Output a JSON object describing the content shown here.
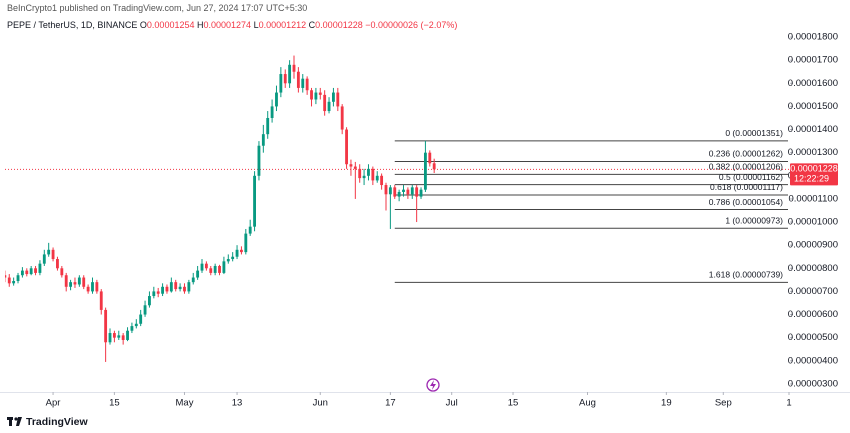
{
  "header": {
    "published": "BeInCrypto1 published on TradingView.com, Jun 27, 2024 17:07 UTC+5:30",
    "symbol": "PEPE / TetherUS, 1D, BINANCE",
    "ohlc": [
      {
        "key": "O",
        "text": "0.00001254"
      },
      {
        "key": "H",
        "text": "0.00001274"
      },
      {
        "key": "L",
        "text": "0.00001212"
      },
      {
        "key": "C",
        "text": "0.00001228"
      }
    ],
    "change": "−0.00000026 (−2.07%)"
  },
  "footer": {
    "logo": "TradingView"
  },
  "chart_data": {
    "type": "candlestick",
    "up_color": "#089981",
    "down_color": "#f23645",
    "grid": false,
    "x": [
      "2024-03-21",
      "2024-03-22",
      "2024-03-23",
      "2024-03-24",
      "2024-03-25",
      "2024-03-26",
      "2024-03-27",
      "2024-03-28",
      "2024-03-29",
      "2024-03-30",
      "2024-03-31",
      "2024-04-01",
      "2024-04-02",
      "2024-04-03",
      "2024-04-04",
      "2024-04-05",
      "2024-04-06",
      "2024-04-07",
      "2024-04-08",
      "2024-04-09",
      "2024-04-10",
      "2024-04-11",
      "2024-04-12",
      "2024-04-13",
      "2024-04-14",
      "2024-04-15",
      "2024-04-16",
      "2024-04-17",
      "2024-04-18",
      "2024-04-19",
      "2024-04-20",
      "2024-04-21",
      "2024-04-22",
      "2024-04-23",
      "2024-04-24",
      "2024-04-25",
      "2024-04-26",
      "2024-04-27",
      "2024-04-28",
      "2024-04-29",
      "2024-04-30",
      "2024-05-01",
      "2024-05-02",
      "2024-05-03",
      "2024-05-04",
      "2024-05-05",
      "2024-05-06",
      "2024-05-07",
      "2024-05-08",
      "2024-05-09",
      "2024-05-10",
      "2024-05-11",
      "2024-05-12",
      "2024-05-13",
      "2024-05-14",
      "2024-05-15",
      "2024-05-16",
      "2024-05-17",
      "2024-05-18",
      "2024-05-19",
      "2024-05-20",
      "2024-05-21",
      "2024-05-22",
      "2024-05-23",
      "2024-05-24",
      "2024-05-25",
      "2024-05-26",
      "2024-05-27",
      "2024-05-28",
      "2024-05-29",
      "2024-05-30",
      "2024-05-31",
      "2024-06-01",
      "2024-06-02",
      "2024-06-03",
      "2024-06-04",
      "2024-06-05",
      "2024-06-06",
      "2024-06-07",
      "2024-06-08",
      "2024-06-09",
      "2024-06-10",
      "2024-06-11",
      "2024-06-12",
      "2024-06-13",
      "2024-06-14",
      "2024-06-15",
      "2024-06-16",
      "2024-06-17",
      "2024-06-18",
      "2024-06-19",
      "2024-06-20",
      "2024-06-21",
      "2024-06-22",
      "2024-06-23",
      "2024-06-24",
      "2024-06-25",
      "2024-06-26",
      "2024-06-27"
    ],
    "open": [
      7.7e-06,
      7.6e-06,
      7.35e-06,
      7.45e-06,
      7.7e-06,
      7.9e-06,
      7.75e-06,
      8e-06,
      7.8e-06,
      8.2e-06,
      8.6e-06,
      8.8e-06,
      8.4e-06,
      8e-06,
      7.7e-06,
      7.2e-06,
      7.4e-06,
      7.3e-06,
      7.6e-06,
      7.2e-06,
      7e-06,
      7.4e-06,
      7e-06,
      6.2e-06,
      4.8e-06,
      5.2e-06,
      5e-06,
      5.1e-06,
      4.9e-06,
      5.3e-06,
      5.5e-06,
      5.6e-06,
      6e-06,
      6.4e-06,
      6.8e-06,
      7e-06,
      6.9e-06,
      7.2e-06,
      7e-06,
      7.4e-06,
      7.1e-06,
      7.2e-06,
      7e-06,
      7.4e-06,
      7.6e-06,
      7.9e-06,
      8.2e-06,
      8e-06,
      7.8e-06,
      8.1e-06,
      7.8e-06,
      8.3e-06,
      8.4e-06,
      8.5e-06,
      8.8e-06,
      8.7e-06,
      9.5e-06,
      9.8e-06,
      1.2e-05,
      1.33e-05,
      1.38e-05,
      1.45e-05,
      1.5e-05,
      1.56e-05,
      1.64e-05,
      1.6e-05,
      1.68e-05,
      1.65e-05,
      1.58e-05,
      1.62e-05,
      1.57e-05,
      1.53e-05,
      1.56e-05,
      1.55e-05,
      1.48e-05,
      1.52e-05,
      1.56e-05,
      1.5e-05,
      1.4e-05,
      1.25e-05,
      1.24e-05,
      1.23e-05,
      1.19e-05,
      1.2e-05,
      1.23e-05,
      1.18e-05,
      1.2e-05,
      1.16e-05,
      1.12e-05,
      1.15e-05,
      1.11e-05,
      1.13e-05,
      1.14e-05,
      1.12e-05,
      1.15e-05,
      1.11e-05,
      1.14e-05,
      1.3e-05,
      1.254e-05
    ],
    "high": [
      7.9e-06,
      7.75e-06,
      7.6e-06,
      7.8e-06,
      8.05e-06,
      8e-06,
      8.1e-06,
      8.1e-06,
      8.35e-06,
      8.8e-06,
      9.1e-06,
      8.9e-06,
      8.5e-06,
      8.1e-06,
      7.8e-06,
      7.5e-06,
      7.6e-06,
      7.7e-06,
      7.7e-06,
      7.3e-06,
      7.6e-06,
      7.5e-06,
      7.1e-06,
      6.3e-06,
      5.4e-06,
      5.3e-06,
      5.3e-06,
      5.2e-06,
      5.45e-06,
      5.65e-06,
      5.8e-06,
      6.2e-06,
      6.6e-06,
      7e-06,
      7.2e-06,
      7.15e-06,
      7.35e-06,
      7.3e-06,
      7.6e-06,
      7.5e-06,
      7.35e-06,
      7.35e-06,
      7.5e-06,
      7.8e-06,
      8.1e-06,
      8.4e-06,
      8.3e-06,
      8.1e-06,
      8.2e-06,
      8.15e-06,
      8.5e-06,
      8.6e-06,
      8.7e-06,
      9e-06,
      8.95e-06,
      9.7e-06,
      1.01e-05,
      1.22e-05,
      1.35e-05,
      1.42e-05,
      1.48e-05,
      1.53e-05,
      1.59e-05,
      1.67e-05,
      1.66e-05,
      1.7e-05,
      1.72e-05,
      1.67e-05,
      1.64e-05,
      1.63e-05,
      1.58e-05,
      1.58e-05,
      1.58e-05,
      1.57e-05,
      1.54e-05,
      1.58e-05,
      1.58e-05,
      1.51e-05,
      1.41e-05,
      1.27e-05,
      1.26e-05,
      1.25e-05,
      1.23e-05,
      1.25e-05,
      1.24e-05,
      1.22e-05,
      1.21e-05,
      1.17e-05,
      1.16e-05,
      1.16e-05,
      1.14e-05,
      1.16e-05,
      1.15e-05,
      1.16e-05,
      1.16e-05,
      1.15e-05,
      1.351e-05,
      1.31e-05,
      1.274e-05
    ],
    "low": [
      7.4e-06,
      7.2e-06,
      7.25e-06,
      7.35e-06,
      7.6e-06,
      7.65e-06,
      7.7e-06,
      7.7e-06,
      7.7e-06,
      8.1e-06,
      8.5e-06,
      8.3e-06,
      7.9e-06,
      7.6e-06,
      7e-06,
      7.05e-06,
      7.15e-06,
      7.2e-06,
      7.1e-06,
      6.9e-06,
      6.9e-06,
      6.9e-06,
      6e-06,
      3.95e-06,
      4.7e-06,
      4.8e-06,
      4.9e-06,
      4.7e-06,
      4.85e-06,
      5.2e-06,
      5.4e-06,
      5.5e-06,
      5.9e-06,
      6.3e-06,
      6.7e-06,
      6.75e-06,
      6.8e-06,
      6.9e-06,
      6.95e-06,
      7e-06,
      7e-06,
      6.9e-06,
      6.9e-06,
      7.3e-06,
      7.5e-06,
      7.8e-06,
      7.9e-06,
      7.7e-06,
      7.7e-06,
      7.7e-06,
      7.75e-06,
      8.2e-06,
      8.3e-06,
      8.4e-06,
      8.6e-06,
      8.6e-06,
      9.4e-06,
      9.6e-06,
      1.18e-05,
      1.3e-05,
      1.36e-05,
      1.43e-05,
      1.48e-05,
      1.54e-05,
      1.58e-05,
      1.58e-05,
      1.62e-05,
      1.56e-05,
      1.56e-05,
      1.55e-05,
      1.5e-05,
      1.51e-05,
      1.53e-05,
      1.46e-05,
      1.47e-05,
      1.5e-05,
      1.48e-05,
      1.38e-05,
      1.23e-05,
      1.2e-05,
      1.1e-05,
      1.17e-05,
      1.16e-05,
      1.18e-05,
      1.16e-05,
      1.17e-05,
      1.14e-05,
      1.05e-05,
      9.7e-06,
      1.1e-05,
      1.09e-05,
      1.11e-05,
      1.1e-05,
      1.1e-05,
      1e-05,
      1.1e-05,
      1.13e-05,
      1.24e-05,
      1.212e-05
    ],
    "close": [
      7.6e-06,
      7.35e-06,
      7.45e-06,
      7.7e-06,
      7.9e-06,
      7.75e-06,
      8e-06,
      7.8e-06,
      8.2e-06,
      8.6e-06,
      8.8e-06,
      8.4e-06,
      8e-06,
      7.7e-06,
      7.2e-06,
      7.4e-06,
      7.3e-06,
      7.6e-06,
      7.2e-06,
      7e-06,
      7.4e-06,
      7e-06,
      6.2e-06,
      4.8e-06,
      5.2e-06,
      5e-06,
      5.1e-06,
      4.9e-06,
      5.3e-06,
      5.5e-06,
      5.6e-06,
      6e-06,
      6.4e-06,
      6.8e-06,
      7e-06,
      6.9e-06,
      7.2e-06,
      7e-06,
      7.4e-06,
      7.1e-06,
      7.2e-06,
      7e-06,
      7.4e-06,
      7.6e-06,
      7.9e-06,
      8.2e-06,
      8e-06,
      7.8e-06,
      8.1e-06,
      7.8e-06,
      8.3e-06,
      8.4e-06,
      8.5e-06,
      8.8e-06,
      8.7e-06,
      9.5e-06,
      9.8e-06,
      1.2e-05,
      1.33e-05,
      1.38e-05,
      1.45e-05,
      1.5e-05,
      1.56e-05,
      1.64e-05,
      1.6e-05,
      1.68e-05,
      1.65e-05,
      1.58e-05,
      1.62e-05,
      1.57e-05,
      1.53e-05,
      1.56e-05,
      1.55e-05,
      1.48e-05,
      1.52e-05,
      1.56e-05,
      1.5e-05,
      1.4e-05,
      1.25e-05,
      1.24e-05,
      1.23e-05,
      1.19e-05,
      1.2e-05,
      1.23e-05,
      1.18e-05,
      1.2e-05,
      1.16e-05,
      1.12e-05,
      1.15e-05,
      1.11e-05,
      1.13e-05,
      1.14e-05,
      1.12e-05,
      1.15e-05,
      1.11e-05,
      1.14e-05,
      1.3e-05,
      1.254e-05,
      1.228e-05
    ],
    "xlim": [
      "2024-03-20",
      "2024-09-16"
    ],
    "xticks": [
      {
        "value": "2024-04-01",
        "label": "Apr"
      },
      {
        "value": "2024-04-15",
        "label": "15"
      },
      {
        "value": "2024-05-01",
        "label": "May"
      },
      {
        "value": "2024-05-13",
        "label": "13"
      },
      {
        "value": "2024-06-01",
        "label": "Jun"
      },
      {
        "value": "2024-06-17",
        "label": "17"
      },
      {
        "value": "2024-07-01",
        "label": "Jul"
      },
      {
        "value": "2024-07-15",
        "label": "15"
      },
      {
        "value": "2024-08-01",
        "label": "Aug"
      },
      {
        "value": "2024-08-19",
        "label": "19"
      },
      {
        "value": "2024-09-01",
        "label": "Sep"
      },
      {
        "value": "2024-09-16",
        "label": "1"
      }
    ],
    "ylim": [
      2.65e-06,
      1.917e-05
    ],
    "yticks": [
      {
        "value": 1.8e-05,
        "label": "0.00001800"
      },
      {
        "value": 1.7e-05,
        "label": "0.00001700"
      },
      {
        "value": 1.6e-05,
        "label": "0.00001600"
      },
      {
        "value": 1.5e-05,
        "label": "0.00001500"
      },
      {
        "value": 1.4e-05,
        "label": "0.00001400"
      },
      {
        "value": 1.3e-05,
        "label": "0.00001300"
      },
      {
        "value": 1.2e-05,
        "label": "0.00001200"
      },
      {
        "value": 1.1e-05,
        "label": "0.00001100"
      },
      {
        "value": 1e-05,
        "label": "0.00001000"
      },
      {
        "value": 9e-06,
        "label": "0.00000900"
      },
      {
        "value": 8e-06,
        "label": "0.00000800"
      },
      {
        "value": 7e-06,
        "label": "0.00000700"
      },
      {
        "value": 6e-06,
        "label": "0.00000600"
      },
      {
        "value": 5e-06,
        "label": "0.00000500"
      },
      {
        "value": 4e-06,
        "label": "0.00000400"
      },
      {
        "value": 3e-06,
        "label": "0.00000300"
      }
    ],
    "fib": {
      "from": "2024-06-18",
      "color": "#444444",
      "levels": [
        {
          "value": 1.351e-05,
          "label": "0 (0.00001351)"
        },
        {
          "value": 1.262e-05,
          "label": "0.236 (0.00001262)"
        },
        {
          "value": 1.206e-05,
          "label": "0.382 (0.00001206)"
        },
        {
          "value": 1.162e-05,
          "label": "0.5 (0.00001162)"
        },
        {
          "value": 1.117e-05,
          "label": "0.618 (0.00001117)"
        },
        {
          "value": 1.054e-05,
          "label": "0.786 (0.00001054)"
        },
        {
          "value": 9.73e-06,
          "label": "1 (0.00000973)"
        },
        {
          "value": 7.39e-06,
          "label": "1.618 (0.00000739)"
        }
      ]
    },
    "last_price": {
      "value": 1.228e-05,
      "label": "0.00001228",
      "countdown": "12:22:29",
      "color": "#f23645"
    }
  }
}
